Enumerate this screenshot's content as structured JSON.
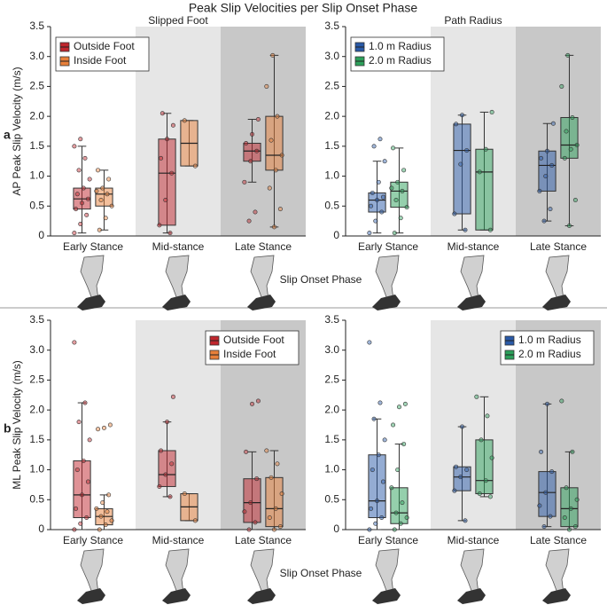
{
  "title": "Peak Slip Velocities per Slip Onset Phase",
  "chart_data": [
    {
      "type": "box",
      "subtitle": "Slipped Foot",
      "panel_label": "a",
      "ylabel": "AP Peak Slip Velocity (m/s)",
      "xlabel": "Slip Onset Phase",
      "categories": [
        "Early Stance",
        "Mid-stance",
        "Late Stance"
      ],
      "band_colors": [
        "#ffffff",
        "#e6e6e6",
        "#c8c8c8"
      ],
      "ylim": [
        0,
        3.5
      ],
      "yticks": [
        0,
        0.5,
        {
          "value": 1,
          "label": "1.0"
        },
        1.5,
        {
          "value": 2,
          "label": "2.0"
        },
        2.5,
        {
          "value": 3,
          "label": "3.0"
        },
        3.5
      ],
      "legend": "upper left",
      "series": [
        {
          "name": "Outside Foot",
          "color": "#c0262d",
          "boxes": [
            {
              "min": 0.05,
              "q1": 0.45,
              "median": 0.62,
              "q3": 0.8,
              "max": 1.5
            },
            {
              "min": 0.05,
              "q1": 0.18,
              "median": 1.05,
              "q3": 1.62,
              "max": 2.05
            },
            {
              "min": 0.9,
              "q1": 1.25,
              "median": 1.42,
              "q3": 1.55,
              "max": 1.95
            }
          ],
          "points": [
            [
              0.05,
              0.2,
              0.35,
              0.45,
              0.55,
              0.62,
              0.7,
              0.8,
              0.95,
              1.1,
              1.3,
              1.5,
              1.62
            ],
            [
              0.05,
              0.18,
              0.6,
              1.05,
              1.3,
              1.62,
              1.85,
              2.05
            ],
            [
              0.25,
              0.4,
              0.9,
              1.25,
              1.42,
              1.55,
              1.7,
              1.95
            ]
          ]
        },
        {
          "name": "Inside Foot",
          "color": "#e8803a",
          "boxes": [
            {
              "min": 0.1,
              "q1": 0.5,
              "median": 0.7,
              "q3": 0.8,
              "max": 1.1
            },
            {
              "min": 1.17,
              "q1": 1.17,
              "median": 1.55,
              "q3": 1.93,
              "max": 1.93
            },
            {
              "min": 0.15,
              "q1": 1.1,
              "median": 1.35,
              "q3": 2.0,
              "max": 3.02
            }
          ],
          "points": [
            [
              0.1,
              0.3,
              0.5,
              0.6,
              0.7,
              0.75,
              0.8,
              0.95,
              1.1
            ],
            [
              1.17,
              1.93
            ],
            [
              0.15,
              0.45,
              0.8,
              1.1,
              1.35,
              1.6,
              2.0,
              2.5,
              3.02
            ]
          ]
        }
      ]
    },
    {
      "type": "box",
      "subtitle": "Path Radius",
      "categories": [
        "Early Stance",
        "Mid-stance",
        "Late Stance"
      ],
      "band_colors": [
        "#ffffff",
        "#e6e6e6",
        "#c8c8c8"
      ],
      "ylim": [
        0,
        3.5
      ],
      "yticks": [
        0,
        0.5,
        {
          "value": 1,
          "label": "1.0"
        },
        1.5,
        {
          "value": 2,
          "label": "2.0"
        },
        2.5,
        {
          "value": 3,
          "label": "3.0"
        },
        3.5
      ],
      "legend": "upper left",
      "series": [
        {
          "name": "1.0 m Radius",
          "color": "#2a5aa8",
          "boxes": [
            {
              "min": 0.05,
              "q1": 0.4,
              "median": 0.6,
              "q3": 0.72,
              "max": 1.25
            },
            {
              "min": 0.1,
              "q1": 0.37,
              "median": 1.43,
              "q3": 1.87,
              "max": 2.02
            },
            {
              "min": 0.25,
              "q1": 0.75,
              "median": 1.18,
              "q3": 1.42,
              "max": 1.88
            }
          ],
          "points": [
            [
              0.05,
              0.25,
              0.4,
              0.5,
              0.6,
              0.65,
              0.72,
              0.9,
              1.25,
              1.5,
              1.62
            ],
            [
              0.1,
              0.37,
              1.2,
              1.43,
              1.87,
              2.02
            ],
            [
              0.25,
              0.45,
              0.75,
              1.0,
              1.18,
              1.3,
              1.42,
              1.88
            ]
          ]
        },
        {
          "name": "2.0 m Radius",
          "color": "#2ca05a",
          "boxes": [
            {
              "min": 0.05,
              "q1": 0.48,
              "median": 0.75,
              "q3": 0.9,
              "max": 1.47
            },
            {
              "min": 0.1,
              "q1": 0.1,
              "median": 1.07,
              "q3": 1.45,
              "max": 2.07
            },
            {
              "min": 0.17,
              "q1": 1.3,
              "median": 1.52,
              "q3": 1.98,
              "max": 3.02
            }
          ],
          "points": [
            [
              0.05,
              0.3,
              0.48,
              0.6,
              0.75,
              0.8,
              0.9,
              1.1,
              1.47
            ],
            [
              0.1,
              1.07,
              1.45,
              2.07
            ],
            [
              0.17,
              0.6,
              1.3,
              1.45,
              1.52,
              1.75,
              1.98,
              2.5,
              3.02
            ]
          ]
        }
      ]
    },
    {
      "type": "box",
      "panel_label": "b",
      "ylabel": "ML Peak Slip Velocity (m/s)",
      "xlabel": "Slip Onset Phase",
      "categories": [
        "Early Stance",
        "Mid-stance",
        "Late Stance"
      ],
      "band_colors": [
        "#ffffff",
        "#e6e6e6",
        "#c8c8c8"
      ],
      "ylim": [
        0,
        3.5
      ],
      "yticks": [
        0,
        0.5,
        {
          "value": 1,
          "label": "1.0"
        },
        1.5,
        {
          "value": 2,
          "label": "2.0"
        },
        2.5,
        {
          "value": 3,
          "label": "3.0"
        },
        3.5
      ],
      "legend": "upper right",
      "series": [
        {
          "name": "Outside Foot",
          "color": "#c0262d",
          "boxes": [
            {
              "min": 0,
              "q1": 0.2,
              "median": 0.58,
              "q3": 1.15,
              "max": 2.12
            },
            {
              "min": 0.55,
              "q1": 0.72,
              "median": 0.92,
              "q3": 1.32,
              "max": 1.8
            },
            {
              "min": 0,
              "q1": 0.12,
              "median": 0.45,
              "q3": 0.85,
              "max": 1.3
            }
          ],
          "points": [
            [
              0,
              0.1,
              0.2,
              0.35,
              0.58,
              0.8,
              1.0,
              1.15,
              1.5,
              1.8,
              2.12,
              3.13
            ],
            [
              0.55,
              0.72,
              0.92,
              1.1,
              1.32,
              1.8,
              2.22
            ],
            [
              0,
              0.12,
              0.3,
              0.45,
              0.85,
              1.3,
              2.1,
              2.15
            ]
          ]
        },
        {
          "name": "Inside Foot",
          "color": "#e8803a",
          "boxes": [
            {
              "min": 0,
              "q1": 0.08,
              "median": 0.22,
              "q3": 0.35,
              "max": 0.58
            },
            {
              "min": 0.15,
              "q1": 0.15,
              "median": 0.38,
              "q3": 0.6,
              "max": 0.6
            },
            {
              "min": 0,
              "q1": 0.05,
              "median": 0.35,
              "q3": 0.87,
              "max": 1.32
            }
          ],
          "points": [
            [
              0,
              0.08,
              0.15,
              0.22,
              0.3,
              0.35,
              0.45,
              0.58,
              1.68,
              1.7,
              1.75
            ],
            [
              0.15,
              0.6
            ],
            [
              0,
              0.05,
              0.2,
              0.35,
              0.6,
              0.87,
              1.1,
              1.32
            ]
          ]
        }
      ]
    },
    {
      "type": "box",
      "categories": [
        "Early Stance",
        "Mid-stance",
        "Late Stance"
      ],
      "band_colors": [
        "#ffffff",
        "#e6e6e6",
        "#c8c8c8"
      ],
      "ylim": [
        0,
        3.5
      ],
      "yticks": [
        0,
        0.5,
        {
          "value": 1,
          "label": "1.0"
        },
        1.5,
        {
          "value": 2,
          "label": "2.0"
        },
        2.5,
        {
          "value": 3,
          "label": "3.0"
        },
        3.5
      ],
      "legend": "upper right",
      "series": [
        {
          "name": "1.0 m Radius",
          "color": "#2a5aa8",
          "boxes": [
            {
              "min": 0,
              "q1": 0.2,
              "median": 0.48,
              "q3": 1.25,
              "max": 1.85
            },
            {
              "min": 0.15,
              "q1": 0.65,
              "median": 0.88,
              "q3": 1.05,
              "max": 1.72
            },
            {
              "min": 0.05,
              "q1": 0.22,
              "median": 0.62,
              "q3": 0.97,
              "max": 2.1
            }
          ],
          "points": [
            [
              0,
              0.1,
              0.2,
              0.35,
              0.48,
              0.8,
              1.0,
              1.25,
              1.5,
              1.85,
              2.12,
              3.13
            ],
            [
              0.15,
              0.65,
              0.88,
              1.0,
              1.05,
              1.72
            ],
            [
              0.05,
              0.22,
              0.4,
              0.62,
              0.97,
              1.3,
              2.1
            ]
          ]
        },
        {
          "name": "2.0 m Radius",
          "color": "#2ca05a",
          "boxes": [
            {
              "min": 0,
              "q1": 0.1,
              "median": 0.28,
              "q3": 0.7,
              "max": 1.43
            },
            {
              "min": 0.55,
              "q1": 0.6,
              "median": 0.82,
              "q3": 1.5,
              "max": 2.22
            },
            {
              "min": 0,
              "q1": 0.05,
              "median": 0.35,
              "q3": 0.7,
              "max": 1.3
            }
          ],
          "points": [
            [
              0,
              0.1,
              0.2,
              0.28,
              0.45,
              0.7,
              1.0,
              1.43,
              1.75,
              2.05,
              2.1
            ],
            [
              0.55,
              0.6,
              0.82,
              1.2,
              1.5,
              1.9,
              2.22
            ],
            [
              0,
              0.05,
              0.2,
              0.35,
              0.5,
              0.7,
              1.3,
              2.15
            ]
          ]
        }
      ]
    }
  ]
}
